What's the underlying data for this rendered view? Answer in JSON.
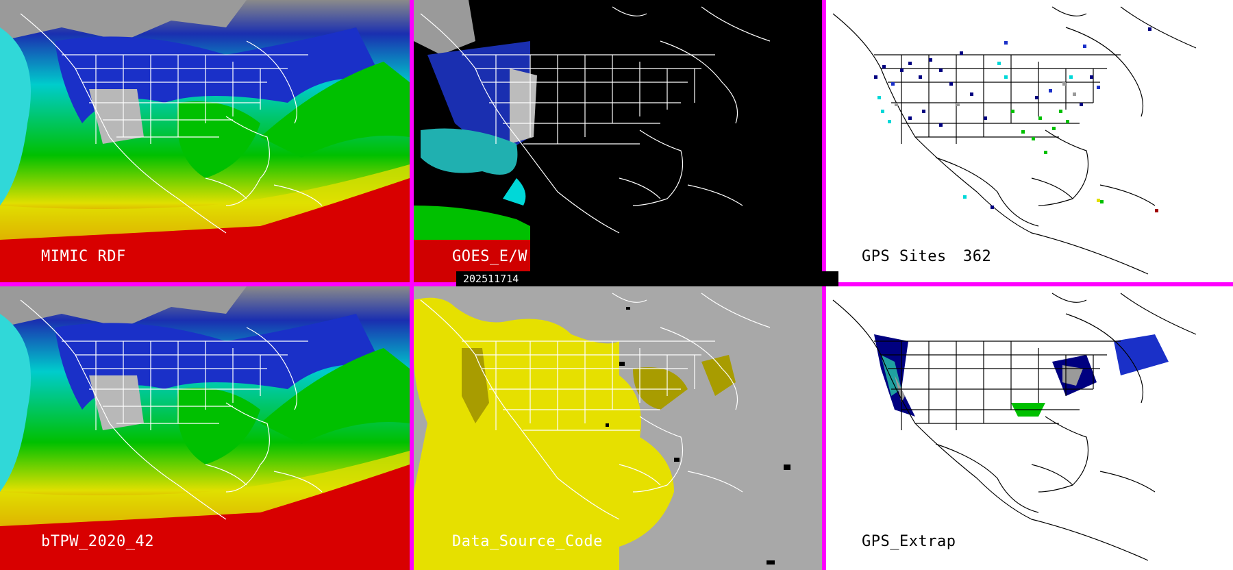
{
  "panels": {
    "mimic": {
      "label": "MIMIC RDF"
    },
    "goes": {
      "label": "GOES_E/W"
    },
    "gps_sites": {
      "label": "GPS Sites",
      "count": "362"
    },
    "btpw": {
      "label": "bTPW_2020_42"
    },
    "data_source": {
      "label": "Data_Source_Code"
    },
    "gps_extrap": {
      "label": "GPS_Extrap"
    }
  },
  "timestamp": "202511714",
  "colors": {
    "divider": "#ff00ff",
    "tpw_scale": [
      "#ffffff",
      "#9a9a9a",
      "#000080",
      "#1a30c8",
      "#00d8d8",
      "#00c000",
      "#e0e000",
      "#d80000",
      "#a000a0"
    ],
    "map_lines_dark": "#ffffff",
    "map_lines_light": "#000000",
    "data_source_yellow": "#e6e000",
    "data_source_olive": "#a89c00",
    "data_source_gray": "#a8a8a8"
  }
}
